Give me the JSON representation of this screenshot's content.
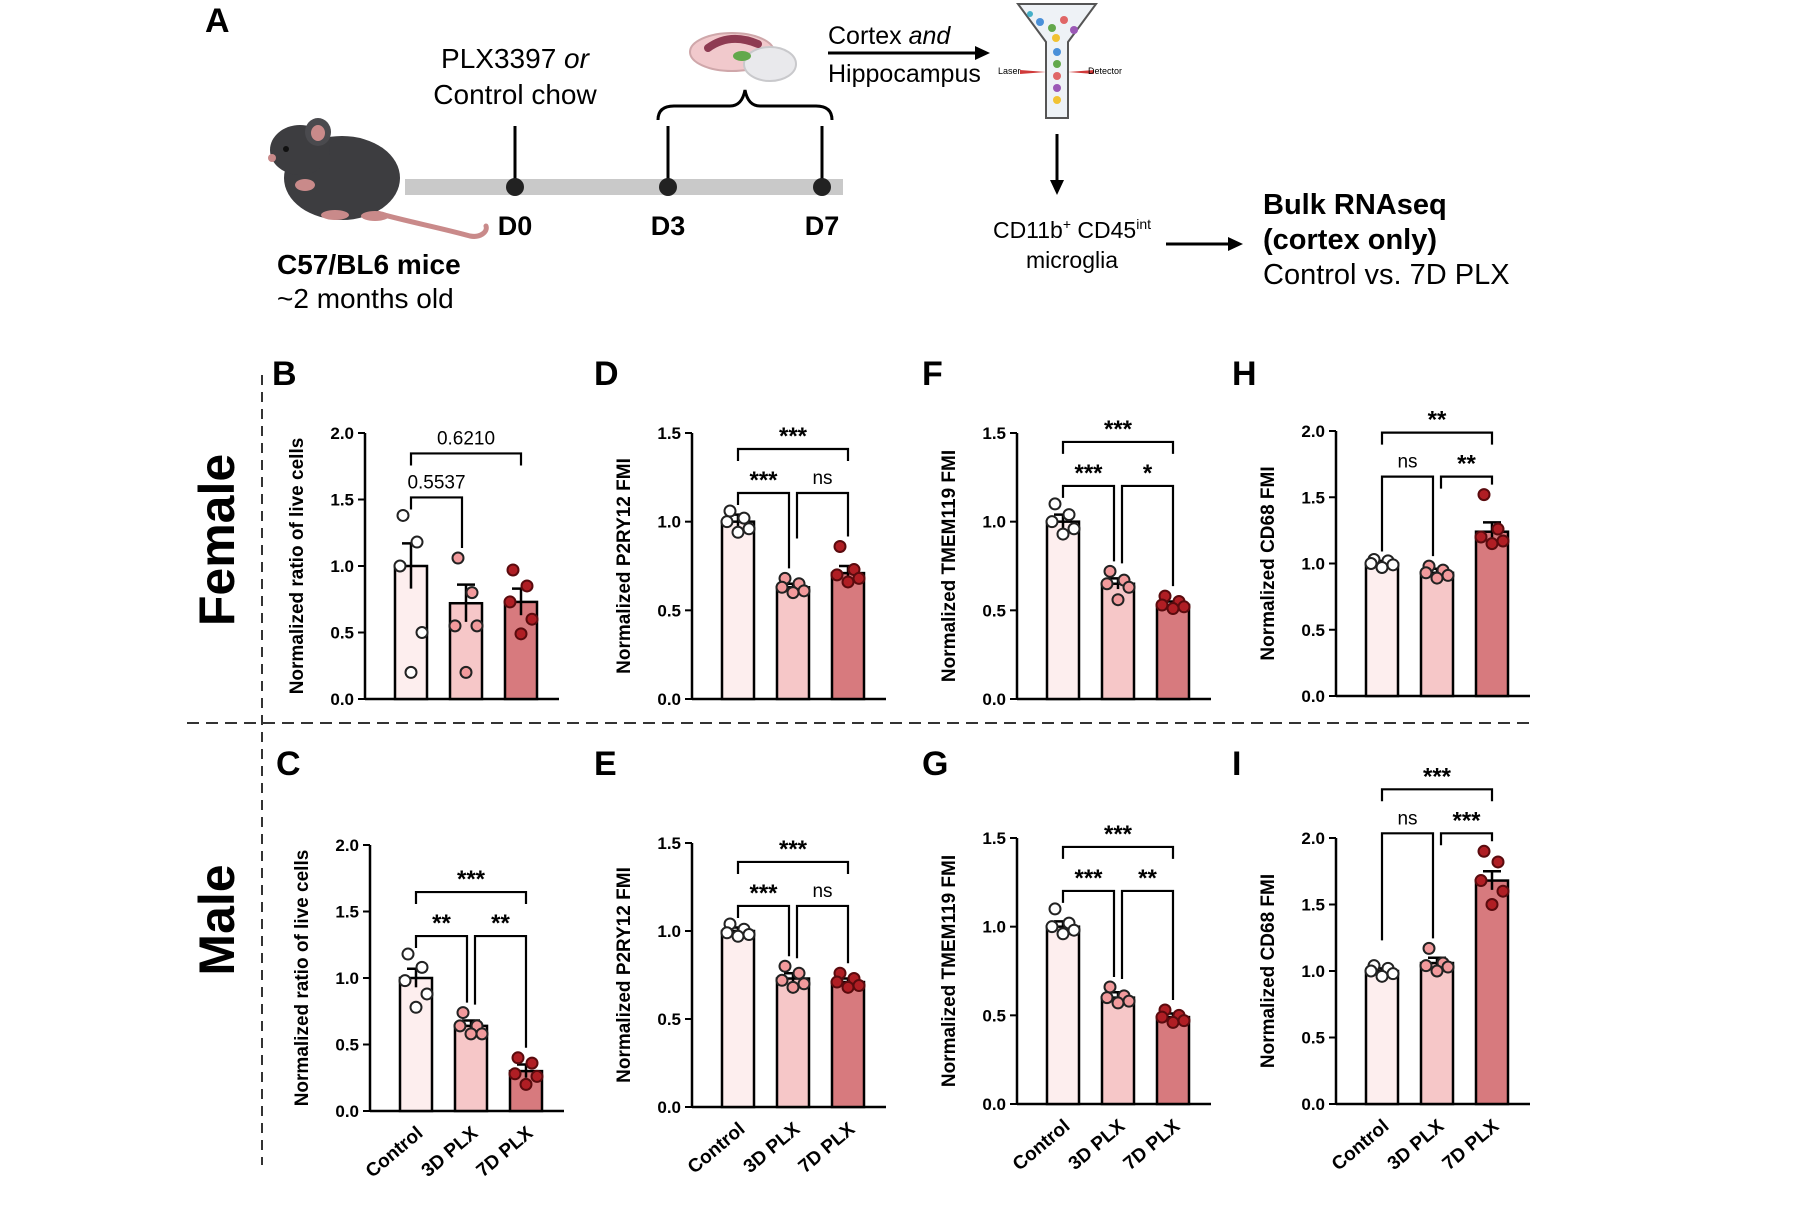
{
  "figure": {
    "panel_a": {
      "letter": "A",
      "treatment_line1_a": "PLX3397",
      "treatment_line1_b": "or",
      "treatment_line2": "Control chow",
      "timepoints": [
        "D0",
        "D3",
        "D7"
      ],
      "mouse_strain": "C57/BL6 mice",
      "mouse_age": "~2 months old",
      "tissue_line1_a": "Cortex",
      "tissue_line1_b": "and",
      "tissue_line2": "Hippocampus",
      "laser_label": "Laser",
      "detector_label": "Detector",
      "cell_label_main": "CD11b",
      "cell_label_sup1": "+",
      "cell_label_mid": " CD45",
      "cell_label_sup2": "int",
      "cell_label_line2": "microglia",
      "seq_line1": "Bulk RNAseq",
      "seq_line2": "(cortex only)",
      "seq_line3": "Control vs. 7D PLX"
    },
    "row_labels": {
      "female": "Female",
      "male": "Male"
    },
    "colors": {
      "control": "#fdeeee",
      "d3": "#f6c7c8",
      "d7": "#d77a7e",
      "dot_control": "#ffffff",
      "dot_d3": "#f29a9c",
      "dot_d7": "#b01e24",
      "timeline": "#c9c9c9"
    }
  },
  "chart_data": [
    {
      "panel": "B",
      "type": "bar",
      "sex": "Female",
      "categories": [
        "Control",
        "3D PLX",
        "7D PLX"
      ],
      "values": [
        1.0,
        0.72,
        0.73
      ],
      "sem": [
        0.17,
        0.14,
        0.1
      ],
      "points": [
        [
          1.38,
          1.18,
          1.0,
          0.5,
          0.2
        ],
        [
          1.06,
          0.8,
          0.55,
          0.55,
          0.2
        ],
        [
          0.97,
          0.85,
          0.73,
          0.6,
          0.49
        ]
      ],
      "ylabel": "Normalized ratio of live cells",
      "ylim": [
        0,
        2.0
      ],
      "yticks": [
        "0.0",
        "0.5",
        "1.0",
        "1.5",
        "2.0"
      ],
      "comparisons": [
        {
          "pair": [
            0,
            1
          ],
          "label": "0.5537"
        },
        {
          "pair": [
            0,
            2
          ],
          "label": "0.6210"
        }
      ]
    },
    {
      "panel": "C",
      "type": "bar",
      "sex": "Male",
      "categories": [
        "Control",
        "3D PLX",
        "7D PLX"
      ],
      "values": [
        1.0,
        0.64,
        0.3
      ],
      "sem": [
        0.07,
        0.04,
        0.05
      ],
      "points": [
        [
          1.18,
          1.08,
          0.98,
          0.88,
          0.78
        ],
        [
          0.74,
          0.64,
          0.64,
          0.58,
          0.58
        ],
        [
          0.4,
          0.36,
          0.28,
          0.26,
          0.2
        ]
      ],
      "ylabel": "Normalized ratio of live cells",
      "ylim": [
        0,
        2.0
      ],
      "yticks": [
        "0.0",
        "0.5",
        "1.0",
        "1.5",
        "2.0"
      ],
      "comparisons": [
        {
          "pair": [
            0,
            1
          ],
          "label": "**"
        },
        {
          "pair": [
            1,
            2
          ],
          "label": "**"
        },
        {
          "pair": [
            0,
            2
          ],
          "label": "***"
        }
      ]
    },
    {
      "panel": "D",
      "type": "bar",
      "sex": "Female",
      "categories": [
        "Control",
        "3D PLX",
        "7D PLX"
      ],
      "values": [
        1.0,
        0.63,
        0.71
      ],
      "sem": [
        0.04,
        0.02,
        0.04
      ],
      "points": [
        [
          1.06,
          1.02,
          1.0,
          0.96,
          0.94
        ],
        [
          0.68,
          0.65,
          0.63,
          0.61,
          0.6
        ],
        [
          0.86,
          0.73,
          0.7,
          0.68,
          0.66
        ]
      ],
      "ylabel": "Normalized P2RY12 FMI",
      "ylim": [
        0,
        1.5
      ],
      "yticks": [
        "0.0",
        "0.5",
        "1.0",
        "1.5"
      ],
      "comparisons": [
        {
          "pair": [
            0,
            1
          ],
          "label": "***"
        },
        {
          "pair": [
            1,
            2
          ],
          "label": "ns"
        },
        {
          "pair": [
            0,
            2
          ],
          "label": "***"
        }
      ]
    },
    {
      "panel": "E",
      "type": "bar",
      "sex": "Male",
      "categories": [
        "Control",
        "3D PLX",
        "7D PLX"
      ],
      "values": [
        1.0,
        0.73,
        0.71
      ],
      "sem": [
        0.02,
        0.03,
        0.02
      ],
      "points": [
        [
          1.04,
          1.01,
          0.99,
          0.98,
          0.97
        ],
        [
          0.8,
          0.76,
          0.72,
          0.7,
          0.68
        ],
        [
          0.76,
          0.73,
          0.71,
          0.69,
          0.68
        ]
      ],
      "ylabel": "Normalized P2RY12 FMI",
      "ylim": [
        0,
        1.5
      ],
      "yticks": [
        "0.0",
        "0.5",
        "1.0",
        "1.5"
      ],
      "comparisons": [
        {
          "pair": [
            0,
            1
          ],
          "label": "***"
        },
        {
          "pair": [
            1,
            2
          ],
          "label": "ns"
        },
        {
          "pair": [
            0,
            2
          ],
          "label": "***"
        }
      ]
    },
    {
      "panel": "F",
      "type": "bar",
      "sex": "Female",
      "categories": [
        "Control",
        "3D PLX",
        "7D PLX"
      ],
      "values": [
        1.0,
        0.65,
        0.53
      ],
      "sem": [
        0.04,
        0.03,
        0.02
      ],
      "points": [
        [
          1.1,
          1.04,
          1.0,
          0.96,
          0.93
        ],
        [
          0.72,
          0.67,
          0.65,
          0.63,
          0.56
        ],
        [
          0.58,
          0.55,
          0.53,
          0.52,
          0.51
        ]
      ],
      "ylabel": "Normalized TMEM119  FMI",
      "ylim": [
        0,
        1.5
      ],
      "yticks": [
        "0.0",
        "0.5",
        "1.0",
        "1.5"
      ],
      "comparisons": [
        {
          "pair": [
            0,
            1
          ],
          "label": "***"
        },
        {
          "pair": [
            1,
            2
          ],
          "label": "*"
        },
        {
          "pair": [
            0,
            2
          ],
          "label": "***"
        }
      ]
    },
    {
      "panel": "G",
      "type": "bar",
      "sex": "Male",
      "categories": [
        "Control",
        "3D PLX",
        "7D PLX"
      ],
      "values": [
        1.0,
        0.6,
        0.49
      ],
      "sem": [
        0.03,
        0.03,
        0.02
      ],
      "points": [
        [
          1.1,
          1.02,
          1.0,
          0.98,
          0.96
        ],
        [
          0.66,
          0.61,
          0.6,
          0.58,
          0.57
        ],
        [
          0.53,
          0.5,
          0.49,
          0.47,
          0.46
        ]
      ],
      "ylabel": "Normalized TMEM119  FMI",
      "ylim": [
        0,
        1.5
      ],
      "yticks": [
        "0.0",
        "0.5",
        "1.0",
        "1.5"
      ],
      "comparisons": [
        {
          "pair": [
            0,
            1
          ],
          "label": "***"
        },
        {
          "pair": [
            1,
            2
          ],
          "label": "**"
        },
        {
          "pair": [
            0,
            2
          ],
          "label": "***"
        }
      ]
    },
    {
      "panel": "H",
      "type": "bar",
      "sex": "Female",
      "categories": [
        "Control",
        "3D PLX",
        "7D PLX"
      ],
      "values": [
        1.0,
        0.93,
        1.24
      ],
      "sem": [
        0.02,
        0.03,
        0.07
      ],
      "points": [
        [
          1.03,
          1.02,
          1.0,
          0.99,
          0.97
        ],
        [
          0.98,
          0.95,
          0.93,
          0.91,
          0.89
        ],
        [
          1.52,
          1.26,
          1.2,
          1.17,
          1.15
        ]
      ],
      "ylabel": "Normalized CD68 FMI",
      "ylim": [
        0,
        2.0
      ],
      "yticks": [
        "0.0",
        "0.5",
        "1.0",
        "1.5",
        "2.0"
      ],
      "comparisons": [
        {
          "pair": [
            0,
            1
          ],
          "label": "ns"
        },
        {
          "pair": [
            1,
            2
          ],
          "label": "**"
        },
        {
          "pair": [
            0,
            2
          ],
          "label": "**"
        }
      ]
    },
    {
      "panel": "I",
      "type": "bar",
      "sex": "Male",
      "categories": [
        "Control",
        "3D PLX",
        "7D PLX"
      ],
      "values": [
        1.0,
        1.06,
        1.68
      ],
      "sem": [
        0.02,
        0.04,
        0.07
      ],
      "points": [
        [
          1.04,
          1.02,
          1.0,
          0.98,
          0.96
        ],
        [
          1.17,
          1.06,
          1.04,
          1.03,
          1.0
        ],
        [
          1.9,
          1.82,
          1.68,
          1.6,
          1.5
        ]
      ],
      "ylabel": "Normalized CD68 FMI",
      "ylim": [
        0,
        2.0
      ],
      "yticks": [
        "0.0",
        "0.5",
        "1.0",
        "1.5",
        "2.0"
      ],
      "comparisons": [
        {
          "pair": [
            0,
            1
          ],
          "label": "ns"
        },
        {
          "pair": [
            1,
            2
          ],
          "label": "***"
        },
        {
          "pair": [
            0,
            2
          ],
          "label": "***"
        }
      ]
    }
  ]
}
